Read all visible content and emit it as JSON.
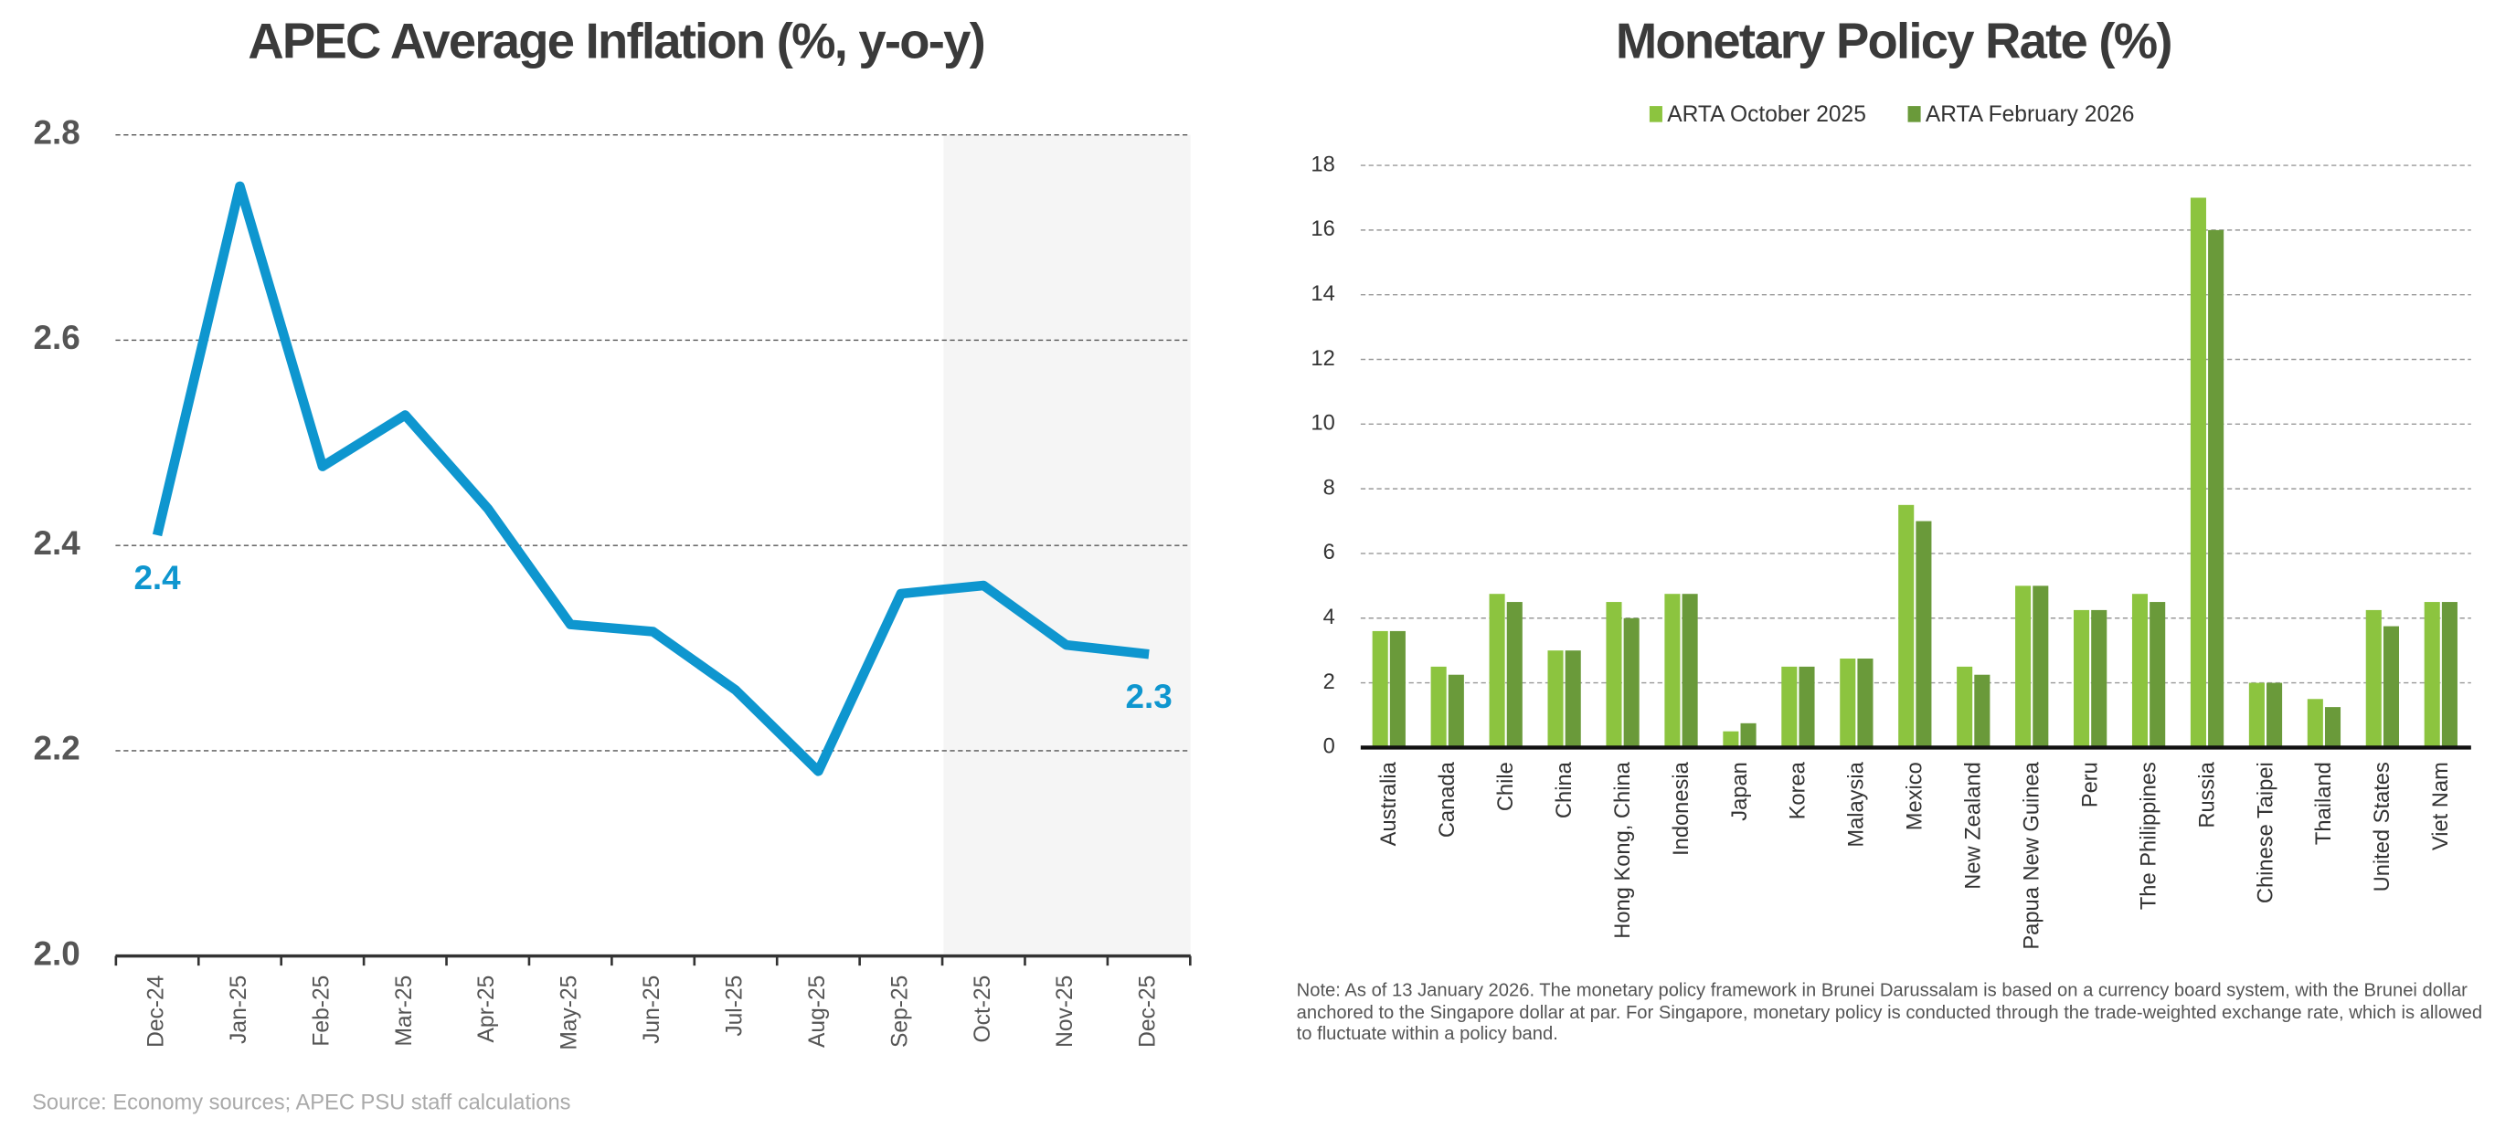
{
  "chart_data": [
    {
      "type": "line",
      "title": "APEC Average Inflation (%, y-o-y)",
      "categories": [
        "Dec-24",
        "Jan-25",
        "Feb-25",
        "Mar-25",
        "Apr-25",
        "May-25",
        "Jun-25",
        "Jul-25",
        "Aug-25",
        "Sep-25",
        "Oct-25",
        "Nov-25",
        "Dec-25"
      ],
      "values": [
        2.41,
        2.75,
        2.477,
        2.527,
        2.436,
        2.323,
        2.316,
        2.259,
        2.18,
        2.353,
        2.361,
        2.303,
        2.294
      ],
      "value_labels": [
        "2.4",
        null,
        null,
        null,
        null,
        null,
        null,
        null,
        null,
        null,
        null,
        null,
        "2.3"
      ],
      "color": "#0e96cf",
      "ylim": [
        2.0,
        2.8
      ],
      "yticks": [
        {
          "value": 2.0,
          "label": "2.0"
        },
        2.2,
        2.4,
        2.6,
        2.8
      ],
      "grid": true,
      "source": "Source: Economy sources; APEC PSU staff calculations"
    },
    {
      "type": "bar",
      "title": "Monetary Policy Rate (%)",
      "categories": [
        "Australia",
        "Canada",
        "Chile",
        "China",
        "Hong Kong, China",
        "Indonesia",
        "Japan",
        "Korea",
        "Malaysia",
        "Mexico",
        "New Zealand",
        "Papua New Guinea",
        "Peru",
        "The Philippines",
        "Russia",
        "Chinese Taipei",
        "Thailand",
        "United States",
        "Viet Nam"
      ],
      "series": [
        {
          "name": "ARTA October 2025",
          "color": "#8cc43f",
          "values": [
            3.6,
            2.5,
            4.75,
            3.0,
            4.5,
            4.75,
            0.5,
            2.5,
            2.75,
            7.5,
            2.5,
            5.0,
            4.25,
            4.75,
            17.0,
            2.0,
            1.5,
            4.25,
            4.5
          ]
        },
        {
          "name": "ARTA February 2026",
          "color": "#6a9a3a",
          "values": [
            3.6,
            2.25,
            4.5,
            3.0,
            4.0,
            4.75,
            0.75,
            2.5,
            2.75,
            7.0,
            2.25,
            5.0,
            4.25,
            4.5,
            16.0,
            2.0,
            1.25,
            3.75,
            4.5
          ]
        }
      ],
      "ylim": [
        0,
        18
      ],
      "yticks": [
        0,
        2,
        4,
        6,
        8,
        10,
        12,
        14,
        16,
        18
      ],
      "grid": true,
      "legend": "top",
      "note": "Note: As of 13 January 2026. The monetary policy framework in Brunei Darussalam is based on a currency board system, with the Brunei dollar anchored to the Singapore dollar at par. For Singapore, monetary policy is conducted through the trade-weighted exchange rate, which is allowed to fluctuate within a policy band."
    }
  ]
}
